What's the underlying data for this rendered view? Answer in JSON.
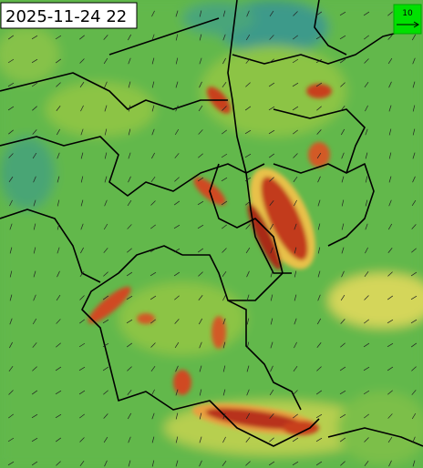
{
  "header": {
    "title": "2025-11-24 22"
  },
  "legend": {
    "label": "10"
  }
}
